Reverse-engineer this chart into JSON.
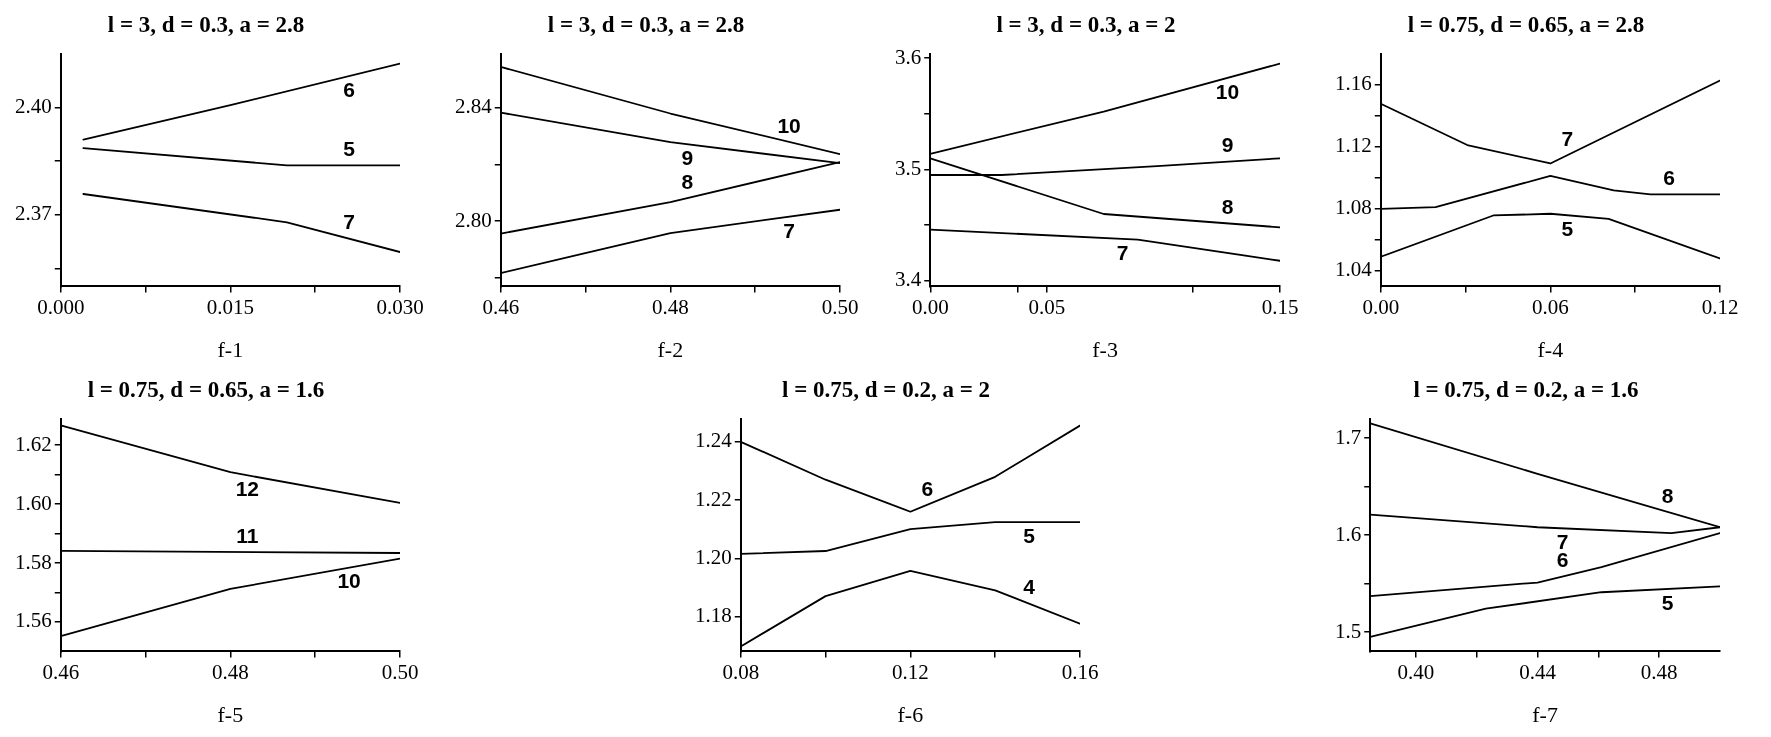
{
  "chart_data": [
    {
      "type": "line",
      "title": "l = 3, d = 0.3, a = 2.8",
      "xlabel": "f-1",
      "xlim": [
        0,
        0.03
      ],
      "xticks": [
        {
          "value": 0,
          "label": "0.000"
        },
        {
          "value": 0.0075,
          "label": null
        },
        {
          "value": 0.015,
          "label": "0.015"
        },
        {
          "value": 0.0225,
          "label": null
        },
        {
          "value": 0.03,
          "label": "0.030"
        }
      ],
      "ylim": [
        2.35,
        2.415
      ],
      "yticks": [
        {
          "value": 2.355,
          "label": null
        },
        2.37,
        {
          "value": 2.385,
          "label": null
        },
        {
          "value": 2.4,
          "label": "2.40"
        }
      ],
      "marker": "none",
      "line_style": "solid",
      "series": [
        {
          "name": "6",
          "color": "#000000",
          "x": [
            0.002,
            0.015,
            0.03
          ],
          "values": [
            2.391,
            2.4006,
            2.4122
          ]
        },
        {
          "name": "5",
          "color": "#000000",
          "x": [
            0.002,
            0.02,
            0.03
          ],
          "values": [
            2.3886,
            2.3838,
            2.3838
          ]
        },
        {
          "name": "7",
          "color": "#000000",
          "x": [
            0.002,
            0.02,
            0.03
          ],
          "values": [
            2.3758,
            2.3679,
            2.3596
          ]
        }
      ]
    },
    {
      "type": "line",
      "title": "l = 3, d = 0.3, a = 2.8",
      "xlabel": "f-2",
      "xlim": [
        0.46,
        0.5
      ],
      "xticks": [
        0.46,
        {
          "value": 0.47,
          "label": null
        },
        0.48,
        {
          "value": 0.49,
          "label": null
        },
        {
          "value": 0.5,
          "label": "0.50"
        }
      ],
      "ylim": [
        2.777,
        2.859
      ],
      "yticks": [
        {
          "value": 2.78,
          "label": null
        },
        {
          "value": 2.8,
          "label": "2.80"
        },
        {
          "value": 2.82,
          "label": null
        },
        2.84
      ],
      "marker": "none",
      "line_style": "solid",
      "series": [
        {
          "name": "10",
          "color": "#000000",
          "x": [
            0.46,
            0.48,
            0.5
          ],
          "values": [
            2.8543,
            2.8379,
            2.8236
          ]
        },
        {
          "name": "9",
          "color": "#000000",
          "x": [
            0.46,
            0.48,
            0.5
          ],
          "values": [
            2.8382,
            2.8278,
            2.8204
          ]
        },
        {
          "name": "8",
          "color": "#000000",
          "x": [
            0.46,
            0.48,
            0.5
          ],
          "values": [
            2.7956,
            2.8067,
            2.8208
          ]
        },
        {
          "name": "7",
          "color": "#000000",
          "x": [
            0.46,
            0.48,
            0.5
          ],
          "values": [
            2.7817,
            2.7958,
            2.804
          ]
        }
      ]
    },
    {
      "type": "line",
      "title": "l = 3, d = 0.3, a = 2",
      "xlabel": "f-3",
      "xlim": [
        0,
        0.15
      ],
      "xticks": [
        {
          "value": 0,
          "label": "0.00"
        },
        {
          "value": 0.0375,
          "label": null
        },
        0.05,
        {
          "value": 0.1125,
          "label": null
        },
        0.15
      ],
      "ylim": [
        3.395,
        3.604
      ],
      "yticks": [
        3.4,
        {
          "value": 3.45,
          "label": null
        },
        3.5,
        {
          "value": 3.55,
          "label": null
        },
        3.6
      ],
      "marker": "none",
      "line_style": "solid",
      "series": [
        {
          "name": "10",
          "color": "#000000",
          "x": [
            0,
            0.0744,
            0.15
          ],
          "values": [
            3.514,
            3.552,
            3.595
          ]
        },
        {
          "name": "9",
          "color": "#000000",
          "x": [
            0,
            0.0306,
            0.0973,
            0.15
          ],
          "values": [
            3.495,
            3.495,
            3.503,
            3.51
          ]
        },
        {
          "name": "8",
          "color": "#000000",
          "x": [
            0,
            0.0744,
            0.15
          ],
          "values": [
            3.51,
            3.46,
            3.448
          ]
        },
        {
          "name": "7",
          "color": "#000000",
          "x": [
            0,
            0.089,
            0.15
          ],
          "values": [
            3.446,
            3.437,
            3.418
          ]
        }
      ]
    },
    {
      "type": "line",
      "title": "l = 0.75, d = 0.65, a = 2.8",
      "xlabel": "f-4",
      "xlim": [
        0,
        0.12
      ],
      "xticks": [
        {
          "value": 0,
          "label": "0.00"
        },
        {
          "value": 0.03,
          "label": null
        },
        0.06,
        {
          "value": 0.09,
          "label": null
        },
        0.12
      ],
      "ylim": [
        1.03,
        1.18
      ],
      "yticks": [
        1.04,
        {
          "value": 1.06,
          "label": null
        },
        1.08,
        {
          "value": 1.1,
          "label": null
        },
        1.12,
        {
          "value": 1.14,
          "label": null
        },
        1.16
      ],
      "marker": "none",
      "line_style": "solid",
      "series": [
        {
          "name": "7",
          "color": "#000000",
          "x": [
            0,
            0.0306,
            0.06,
            0.12
          ],
          "values": [
            1.1477,
            1.1211,
            1.1092,
            1.1626
          ]
        },
        {
          "name": "6",
          "color": "#000000",
          "x": [
            0,
            0.0194,
            0.06,
            0.0824,
            0.0954,
            0.12
          ],
          "values": [
            1.08,
            1.0811,
            1.1012,
            1.0919,
            1.0893,
            1.0893
          ]
        },
        {
          "name": "5",
          "color": "#000000",
          "x": [
            0,
            0.0398,
            0.06,
            0.0806,
            0.12
          ],
          "values": [
            1.0491,
            1.0757,
            1.0768,
            1.0735,
            1.048
          ]
        }
      ]
    },
    {
      "type": "line",
      "title": "l = 0.75, d = 0.65, a = 1.6",
      "xlabel": "f-5",
      "xlim": [
        0.46,
        0.5
      ],
      "xticks": [
        0.46,
        {
          "value": 0.47,
          "label": null
        },
        0.48,
        {
          "value": 0.49,
          "label": null
        },
        {
          "value": 0.5,
          "label": "0.50"
        }
      ],
      "ylim": [
        1.55,
        1.629
      ],
      "yticks": [
        1.56,
        {
          "value": 1.57,
          "label": null
        },
        1.58,
        {
          "value": 1.59,
          "label": null
        },
        {
          "value": 1.6,
          "label": "1.60"
        },
        {
          "value": 1.61,
          "label": null
        },
        1.62
      ],
      "marker": "none",
      "line_style": "solid",
      "series": [
        {
          "name": "12",
          "color": "#000000",
          "x": [
            0.46,
            0.48,
            0.5
          ],
          "values": [
            1.6267,
            1.6108,
            1.6004
          ]
        },
        {
          "name": "11",
          "color": "#000000",
          "x": [
            0.46,
            0.5
          ],
          "values": [
            1.5841,
            1.5834
          ]
        },
        {
          "name": "10",
          "color": "#000000",
          "x": [
            0.46,
            0.48,
            0.5
          ],
          "values": [
            1.5552,
            1.5712,
            1.5815
          ]
        }
      ]
    },
    {
      "type": "line",
      "title": "l = 0.75, d = 0.2, a = 2",
      "xlabel": "f-6",
      "xlim": [
        0.08,
        0.16
      ],
      "xticks": [
        0.08,
        {
          "value": 0.1,
          "label": null
        },
        0.12,
        {
          "value": 0.14,
          "label": null
        },
        0.16
      ],
      "ylim": [
        1.168,
        1.248
      ],
      "yticks": [
        1.18,
        {
          "value": 1.2,
          "label": "1.20"
        },
        1.22,
        1.24
      ],
      "marker": "none",
      "line_style": "solid",
      "series": [
        {
          "name": "6",
          "color": "#000000",
          "x": [
            0.08,
            0.1,
            0.12,
            0.14,
            0.16
          ],
          "values": [
            1.24,
            1.227,
            1.216,
            1.228,
            1.2456
          ]
        },
        {
          "name": "5",
          "color": "#000000",
          "x": [
            0.08,
            0.1,
            0.12,
            0.14,
            0.16
          ],
          "values": [
            1.2015,
            1.2025,
            1.21,
            1.2124,
            1.2124
          ]
        },
        {
          "name": "4",
          "color": "#000000",
          "x": [
            0.08,
            0.1,
            0.12,
            0.14,
            0.16
          ],
          "values": [
            1.1697,
            1.187,
            1.1957,
            1.189,
            1.1775
          ]
        }
      ]
    },
    {
      "type": "line",
      "title": "l = 0.75, d = 0.2, a = 1.6",
      "xlabel": "f-7",
      "xlim": [
        0.385,
        0.5
      ],
      "xticks": [
        {
          "value": 0.4,
          "label": "0.40"
        },
        {
          "value": 0.42,
          "label": null
        },
        0.44,
        {
          "value": 0.46,
          "label": null
        },
        0.48
      ],
      "ylim": [
        1.48,
        1.72
      ],
      "yticks": [
        1.5,
        {
          "value": 1.55,
          "label": null
        },
        {
          "value": 1.6,
          "label": "1.6"
        },
        {
          "value": 1.65,
          "label": null
        },
        1.7
      ],
      "marker": "none",
      "line_style": "solid",
      "series": [
        {
          "name": "8",
          "color": "#000000",
          "x": [
            0.385,
            0.44,
            0.5
          ],
          "values": [
            1.715,
            1.663,
            1.608
          ]
        },
        {
          "name": "7",
          "color": "#000000",
          "x": [
            0.385,
            0.44,
            0.484,
            0.5
          ],
          "values": [
            1.621,
            1.608,
            1.602,
            1.608
          ]
        },
        {
          "name": "6",
          "color": "#000000",
          "x": [
            0.385,
            0.44,
            0.461,
            0.5
          ],
          "values": [
            1.537,
            1.551,
            1.567,
            1.602
          ]
        },
        {
          "name": "5",
          "color": "#000000",
          "x": [
            0.385,
            0.423,
            0.461,
            0.5
          ],
          "values": [
            1.495,
            1.524,
            1.541,
            1.547
          ]
        }
      ]
    }
  ]
}
